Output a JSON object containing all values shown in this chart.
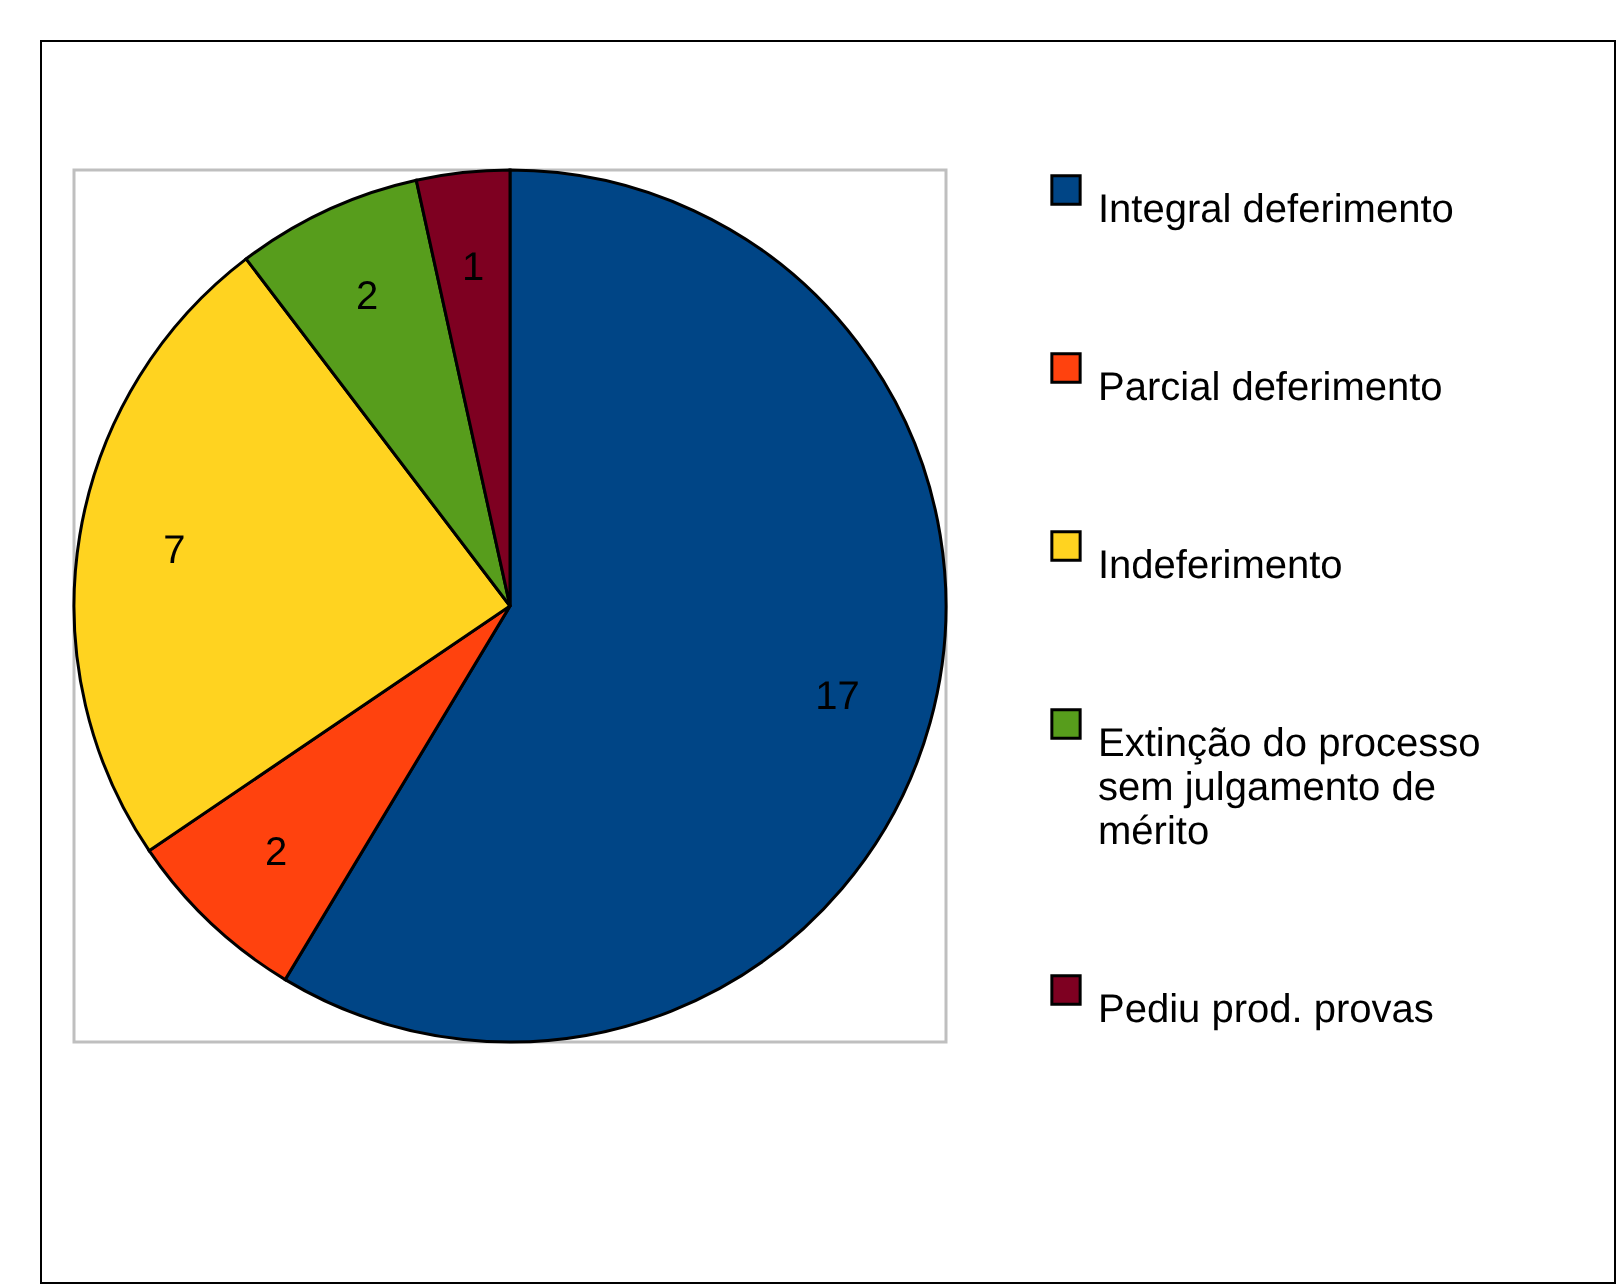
{
  "chart_data": {
    "type": "pie",
    "categories": [
      "Integral deferimento",
      "Parcial deferimento",
      "Indeferimento",
      "Extinção do processo sem julgamento de mérito",
      "Pediu prod. provas"
    ],
    "values": [
      17,
      2,
      7,
      2,
      1
    ],
    "colors": [
      "#004586",
      "#ff420e",
      "#ffd320",
      "#579d1c",
      "#7e0021"
    ],
    "data_labels": true,
    "legend": "right"
  }
}
